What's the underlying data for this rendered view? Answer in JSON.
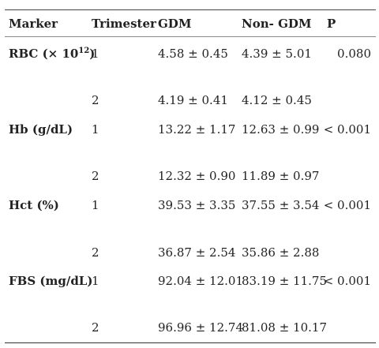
{
  "table": {
    "headers": {
      "marker": "Marker",
      "trimester": "Trimester",
      "gdm": "GDM",
      "non_gdm": "Non- GDM",
      "p": "P"
    },
    "rows": [
      {
        "marker_main": "RBC (× 10",
        "marker_sup": "12",
        "marker_tail": ")",
        "t1": "1",
        "gdm1": "4.58 ± 0.45",
        "non1": "4.39 ± 5.01",
        "p": "0.080",
        "t2": "2",
        "gdm2": "4.19 ± 0.41",
        "non2": "4.12 ± 0.45"
      },
      {
        "marker": "Hb (g/dL)",
        "t1": "1",
        "gdm1": "13.22 ± 1.17",
        "non1": "12.63 ± 0.99",
        "p": "< 0.001",
        "t2": "2",
        "gdm2": "12.32 ± 0.90",
        "non2": "11.89 ± 0.97"
      },
      {
        "marker": "Hct (%)",
        "t1": "1",
        "gdm1": "39.53 ± 3.35",
        "non1": "37.55 ± 3.54",
        "p": "< 0.001",
        "t2": "2",
        "gdm2": "36.87 ± 2.54",
        "non2": "35.86 ± 2.88"
      },
      {
        "marker": "FBS (mg/dL)",
        "t1": "1",
        "gdm1": "92.04 ± 12.01",
        "non1": "83.19 ± 11.75",
        "p": "< 0.001",
        "t2": "2",
        "gdm2": "96.96 ± 12.74",
        "non2": "81.08 ± 10.17"
      }
    ]
  }
}
